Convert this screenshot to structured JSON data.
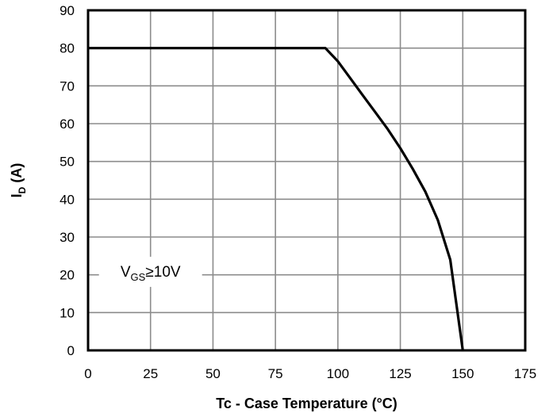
{
  "chart_data": {
    "type": "line",
    "title": "",
    "xlabel": "Tc - Case Temperature (°C)",
    "ylabel": {
      "main": "I",
      "sub": "D",
      "rest": " (A)"
    },
    "xlim": [
      0,
      175
    ],
    "ylim": [
      0,
      90
    ],
    "x_ticks": [
      0,
      25,
      50,
      75,
      100,
      125,
      150,
      175
    ],
    "y_ticks": [
      0,
      10,
      20,
      30,
      40,
      50,
      60,
      70,
      80,
      90
    ],
    "grid": true,
    "series": [
      {
        "color": "#000000",
        "points": [
          [
            0,
            80
          ],
          [
            95,
            80
          ],
          [
            100,
            76.5
          ],
          [
            105,
            72
          ],
          [
            110,
            67.5
          ],
          [
            115,
            63
          ],
          [
            120,
            58.5
          ],
          [
            125,
            53.5
          ],
          [
            130,
            48
          ],
          [
            135,
            42
          ],
          [
            140,
            34.5
          ],
          [
            145,
            24
          ],
          [
            150,
            0
          ]
        ]
      }
    ],
    "annotation": {
      "main": "V",
      "sub": "GS",
      "rest": "≥10V",
      "x": 25,
      "y": 21
    }
  }
}
